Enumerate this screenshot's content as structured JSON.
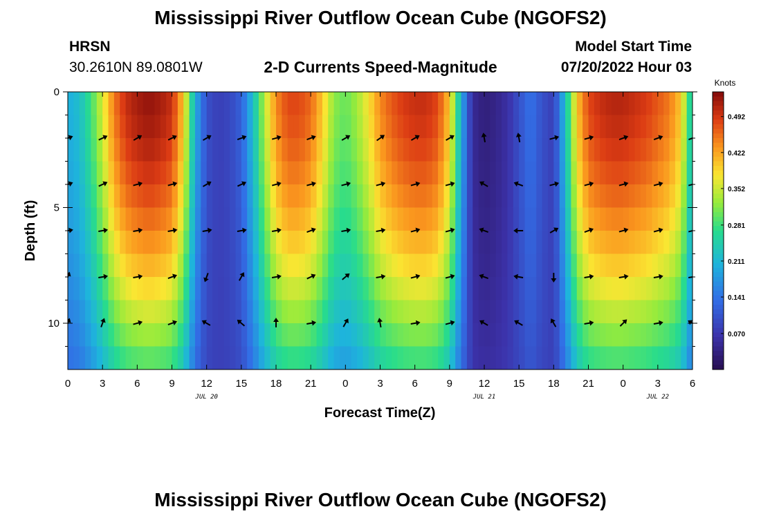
{
  "page": {
    "title": "Mississippi River Outflow Ocean Cube (NGOFS2)",
    "footer_title": "Mississippi River Outflow Ocean Cube (NGOFS2)",
    "station": "HRSN",
    "coords": "30.2610N  89.0801W",
    "plot_title": "2-D Currents Speed-Magnitude",
    "model_start_label": "Model Start Time",
    "model_start_value": "07/20/2022 Hour 03"
  },
  "chart_data": {
    "type": "heatmap",
    "title": "2-D Currents Speed-Magnitude",
    "xlabel": "Forecast Time(Z)",
    "ylabel": "Depth (ft)",
    "x_range_hours": [
      0,
      54
    ],
    "y_range_ft": [
      0,
      12
    ],
    "x_tick_labels": [
      "0",
      "3",
      "6",
      "9",
      "12",
      "15",
      "18",
      "21",
      "0",
      "3",
      "6",
      "9",
      "12",
      "15",
      "18",
      "21",
      "0",
      "3",
      "6"
    ],
    "y_tick_labels": [
      "0",
      "5",
      "10"
    ],
    "date_labels": [
      {
        "text": "JUL 20",
        "hour": 12
      },
      {
        "text": "JUL 21",
        "hour": 36
      },
      {
        "text": "JUL 22",
        "hour": 51
      }
    ],
    "colorbar": {
      "units": "Knots",
      "min": 0.0,
      "max": 0.54,
      "tick_labels": [
        "0.492",
        "0.422",
        "0.352",
        "0.281",
        "0.211",
        "0.141",
        "0.070"
      ],
      "tick_values": [
        0.492,
        0.422,
        0.352,
        0.281,
        0.211,
        0.141,
        0.07
      ]
    },
    "speed_profile_knots": [
      {
        "h": 0,
        "s": 0.2
      },
      {
        "h": 1,
        "s": 0.22
      },
      {
        "h": 2,
        "s": 0.28
      },
      {
        "h": 3,
        "s": 0.36
      },
      {
        "h": 4,
        "s": 0.45
      },
      {
        "h": 5,
        "s": 0.5
      },
      {
        "h": 6,
        "s": 0.52
      },
      {
        "h": 7,
        "s": 0.53
      },
      {
        "h": 8,
        "s": 0.52
      },
      {
        "h": 9,
        "s": 0.5
      },
      {
        "h": 10,
        "s": 0.4
      },
      {
        "h": 11,
        "s": 0.2
      },
      {
        "h": 12,
        "s": 0.1
      },
      {
        "h": 13,
        "s": 0.08
      },
      {
        "h": 14,
        "s": 0.09
      },
      {
        "h": 15,
        "s": 0.12
      },
      {
        "h": 16,
        "s": 0.22
      },
      {
        "h": 17,
        "s": 0.34
      },
      {
        "h": 18,
        "s": 0.44
      },
      {
        "h": 19,
        "s": 0.48
      },
      {
        "h": 20,
        "s": 0.48
      },
      {
        "h": 21,
        "s": 0.46
      },
      {
        "h": 22,
        "s": 0.4
      },
      {
        "h": 23,
        "s": 0.32
      },
      {
        "h": 24,
        "s": 0.3
      },
      {
        "h": 25,
        "s": 0.33
      },
      {
        "h": 26,
        "s": 0.38
      },
      {
        "h": 27,
        "s": 0.44
      },
      {
        "h": 28,
        "s": 0.47
      },
      {
        "h": 29,
        "s": 0.49
      },
      {
        "h": 30,
        "s": 0.5
      },
      {
        "h": 31,
        "s": 0.5
      },
      {
        "h": 32,
        "s": 0.48
      },
      {
        "h": 33,
        "s": 0.4
      },
      {
        "h": 34,
        "s": 0.2
      },
      {
        "h": 35,
        "s": 0.05
      },
      {
        "h": 36,
        "s": 0.03
      },
      {
        "h": 37,
        "s": 0.04
      },
      {
        "h": 38,
        "s": 0.06
      },
      {
        "h": 39,
        "s": 0.1
      },
      {
        "h": 40,
        "s": 0.14
      },
      {
        "h": 41,
        "s": 0.1
      },
      {
        "h": 42,
        "s": 0.08
      },
      {
        "h": 43,
        "s": 0.22
      },
      {
        "h": 44,
        "s": 0.4
      },
      {
        "h": 45,
        "s": 0.48
      },
      {
        "h": 46,
        "s": 0.5
      },
      {
        "h": 47,
        "s": 0.51
      },
      {
        "h": 48,
        "s": 0.51
      },
      {
        "h": 49,
        "s": 0.5
      },
      {
        "h": 50,
        "s": 0.49
      },
      {
        "h": 51,
        "s": 0.47
      },
      {
        "h": 52,
        "s": 0.45
      },
      {
        "h": 53,
        "s": 0.4
      },
      {
        "h": 54,
        "s": 0.22
      }
    ],
    "direction_arrows": {
      "depth_rows_ft": [
        2,
        4,
        6,
        8,
        10
      ],
      "hours": [
        0,
        3,
        6,
        9,
        12,
        15,
        18,
        21,
        24,
        27,
        30,
        33,
        36,
        39,
        42,
        45,
        48,
        51,
        54
      ],
      "angles_deg": [
        [
          20,
          25,
          30,
          25,
          30,
          20,
          15,
          20,
          30,
          35,
          30,
          30,
          100,
          100,
          15,
          15,
          20,
          20,
          20
        ],
        [
          20,
          25,
          15,
          15,
          30,
          25,
          15,
          15,
          15,
          15,
          15,
          15,
          150,
          160,
          15,
          15,
          15,
          15,
          15
        ],
        [
          10,
          10,
          10,
          10,
          10,
          10,
          10,
          20,
          10,
          10,
          15,
          15,
          160,
          180,
          30,
          20,
          15,
          15,
          15
        ],
        [
          70,
          10,
          10,
          20,
          250,
          60,
          10,
          25,
          40,
          10,
          15,
          15,
          160,
          170,
          270,
          10,
          10,
          10,
          10
        ],
        [
          70,
          70,
          15,
          20,
          150,
          140,
          90,
          10,
          60,
          100,
          10,
          15,
          150,
          150,
          120,
          10,
          45,
          10,
          150
        ]
      ]
    }
  }
}
